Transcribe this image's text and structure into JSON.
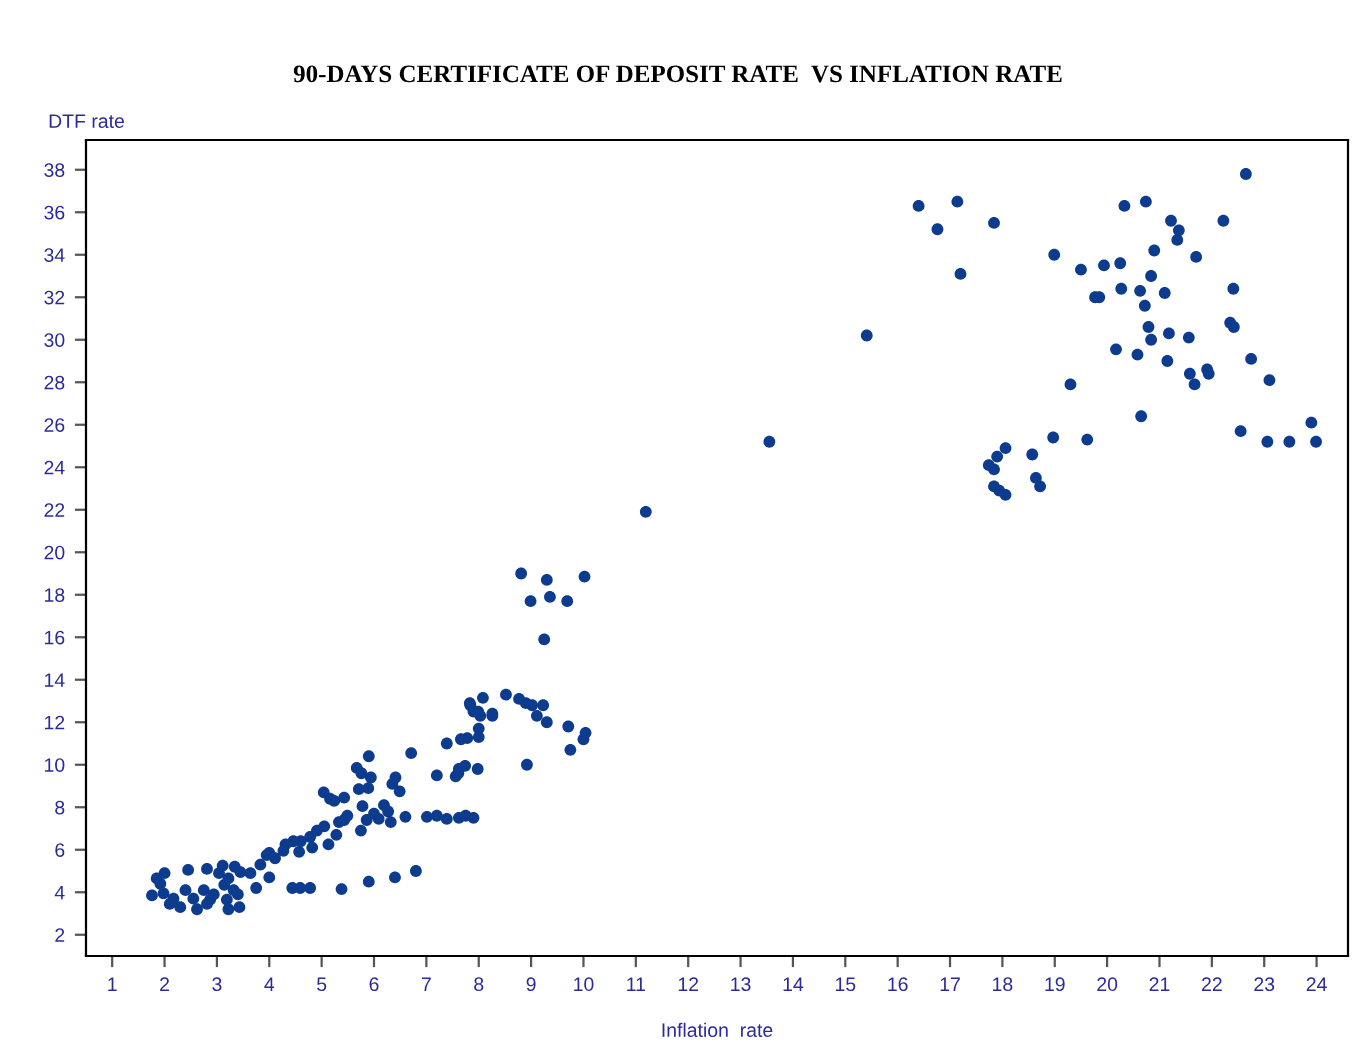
{
  "chart_data": {
    "type": "scatter",
    "title": "90-DAYS CERTIFICATE OF DEPOSIT RATE  VS INFLATION RATE",
    "xlabel": "Inflation  rate",
    "ylabel": "DTF rate",
    "xlim": [
      0.5,
      24.6
    ],
    "ylim": [
      1,
      39.4
    ],
    "xticks": [
      1,
      2,
      3,
      4,
      5,
      6,
      7,
      8,
      9,
      10,
      11,
      12,
      13,
      14,
      15,
      16,
      17,
      18,
      19,
      20,
      21,
      22,
      23,
      24
    ],
    "yticks": [
      2,
      4,
      6,
      8,
      10,
      12,
      14,
      16,
      18,
      20,
      22,
      24,
      26,
      28,
      30,
      32,
      34,
      36,
      38
    ],
    "grid": false,
    "marker": "circle",
    "series": [
      {
        "color": "#0d3b8e",
        "x": [
          16.4,
          17.14,
          16.76,
          17.84,
          17.2,
          18.99,
          19.5,
          19.94,
          20.25,
          20.33,
          20.74,
          21.22,
          21.37,
          21.34,
          20.9,
          21.7,
          22.22,
          22.65,
          20.84,
          19.77,
          19.85,
          20.27,
          20.63,
          21.1,
          20.72,
          22.41,
          20.79,
          22.35,
          22.42,
          20.84,
          21.18,
          21.56,
          20.17,
          20.58,
          21.15,
          21.58,
          21.67,
          21.91,
          21.94,
          22.75,
          23.1,
          19.3,
          20.65,
          22.55,
          23.06,
          23.48,
          23.9,
          23.99,
          18.97,
          19.62,
          18.57,
          18.06,
          17.9,
          17.74,
          17.84,
          18.64,
          18.72,
          17.84,
          17.94,
          18.06,
          15.41,
          13.55,
          11.19,
          8.81,
          9.3,
          10.02,
          8.99,
          9.36,
          9.69,
          9.25,
          8.52,
          8.08,
          7.83,
          8.77,
          8.9,
          9.02,
          9.23,
          7.9,
          8.03,
          8.26,
          9.11,
          9.3,
          9.71,
          8.0,
          10.04,
          10.0,
          8.0,
          7.78,
          7.66,
          7.39,
          9.75,
          6.71,
          8.92,
          7.98,
          7.74,
          7.62,
          7.56,
          7.2,
          7.01,
          7.2,
          7.39,
          7.62,
          7.75,
          7.9,
          6.8,
          7.84,
          7.99,
          8.26,
          7.61,
          5.9,
          5.67,
          5.76,
          5.94,
          6.41,
          6.35,
          6.49,
          5.89,
          5.71,
          5.04,
          5.16,
          5.24,
          5.43,
          5.78,
          6.19,
          6.27,
          6.0,
          6.09,
          5.86,
          6.32,
          6.6,
          5.49,
          5.43,
          5.75,
          5.33,
          5.05,
          4.91,
          5.28,
          5.13,
          4.78,
          4.6,
          4.46,
          4.31,
          4.82,
          4.57,
          4.27,
          4.0,
          3.95,
          4.11,
          3.83,
          3.64,
          4.0,
          3.75,
          3.34,
          3.45,
          3.11,
          3.04,
          3.22,
          3.14,
          3.32,
          3.4,
          3.22,
          3.43,
          2.81,
          2.45,
          2.0,
          1.85,
          1.92,
          1.76,
          1.98,
          2.17,
          2.3,
          2.1,
          2.4,
          2.55,
          2.62,
          2.75,
          2.87,
          2.94,
          2.81,
          3.19,
          4.44,
          4.59,
          4.78,
          5.38,
          5.9,
          6.4
        ],
        "values": [
          36.3,
          36.5,
          35.2,
          35.5,
          33.1,
          34.0,
          33.3,
          33.5,
          33.6,
          36.3,
          36.5,
          35.6,
          35.15,
          34.7,
          34.2,
          33.9,
          35.6,
          37.8,
          33.0,
          32.0,
          32.0,
          32.4,
          32.3,
          32.2,
          31.6,
          32.4,
          30.6,
          30.8,
          30.6,
          30.0,
          30.3,
          30.1,
          29.55,
          29.3,
          29.0,
          28.4,
          27.9,
          28.6,
          28.4,
          29.1,
          28.1,
          27.9,
          26.4,
          25.7,
          25.2,
          25.2,
          26.1,
          25.2,
          25.4,
          25.3,
          24.6,
          24.9,
          24.5,
          24.1,
          23.9,
          23.5,
          23.1,
          23.1,
          22.9,
          22.7,
          30.2,
          25.2,
          21.9,
          19.0,
          18.7,
          18.85,
          17.7,
          17.9,
          17.7,
          15.9,
          13.3,
          13.15,
          12.9,
          13.1,
          12.9,
          12.8,
          12.8,
          12.5,
          12.3,
          12.3,
          12.3,
          12.0,
          11.8,
          11.7,
          11.5,
          11.2,
          11.3,
          11.25,
          11.2,
          11.0,
          10.7,
          10.55,
          10.0,
          9.8,
          9.95,
          9.8,
          9.45,
          9.5,
          7.55,
          7.6,
          7.45,
          7.5,
          7.6,
          7.5,
          5.0,
          12.8,
          12.5,
          12.4,
          9.6,
          10.4,
          9.85,
          9.6,
          9.4,
          9.4,
          9.1,
          8.75,
          8.9,
          8.85,
          8.7,
          8.4,
          8.3,
          8.45,
          8.05,
          8.1,
          7.8,
          7.7,
          7.45,
          7.4,
          7.3,
          7.55,
          7.6,
          7.4,
          6.9,
          7.3,
          7.1,
          6.9,
          6.7,
          6.25,
          6.6,
          6.4,
          6.4,
          6.25,
          6.1,
          5.9,
          5.95,
          5.85,
          5.75,
          5.6,
          5.3,
          4.9,
          4.7,
          4.2,
          5.2,
          4.95,
          5.25,
          4.9,
          4.65,
          4.35,
          4.1,
          3.9,
          3.2,
          3.3,
          5.1,
          5.05,
          4.9,
          4.65,
          4.4,
          3.85,
          3.95,
          3.7,
          3.3,
          3.45,
          4.1,
          3.7,
          3.2,
          4.1,
          3.65,
          3.9,
          3.45,
          3.65,
          4.2,
          4.2,
          4.2,
          4.15,
          4.5,
          4.7
        ]
      }
    ]
  }
}
